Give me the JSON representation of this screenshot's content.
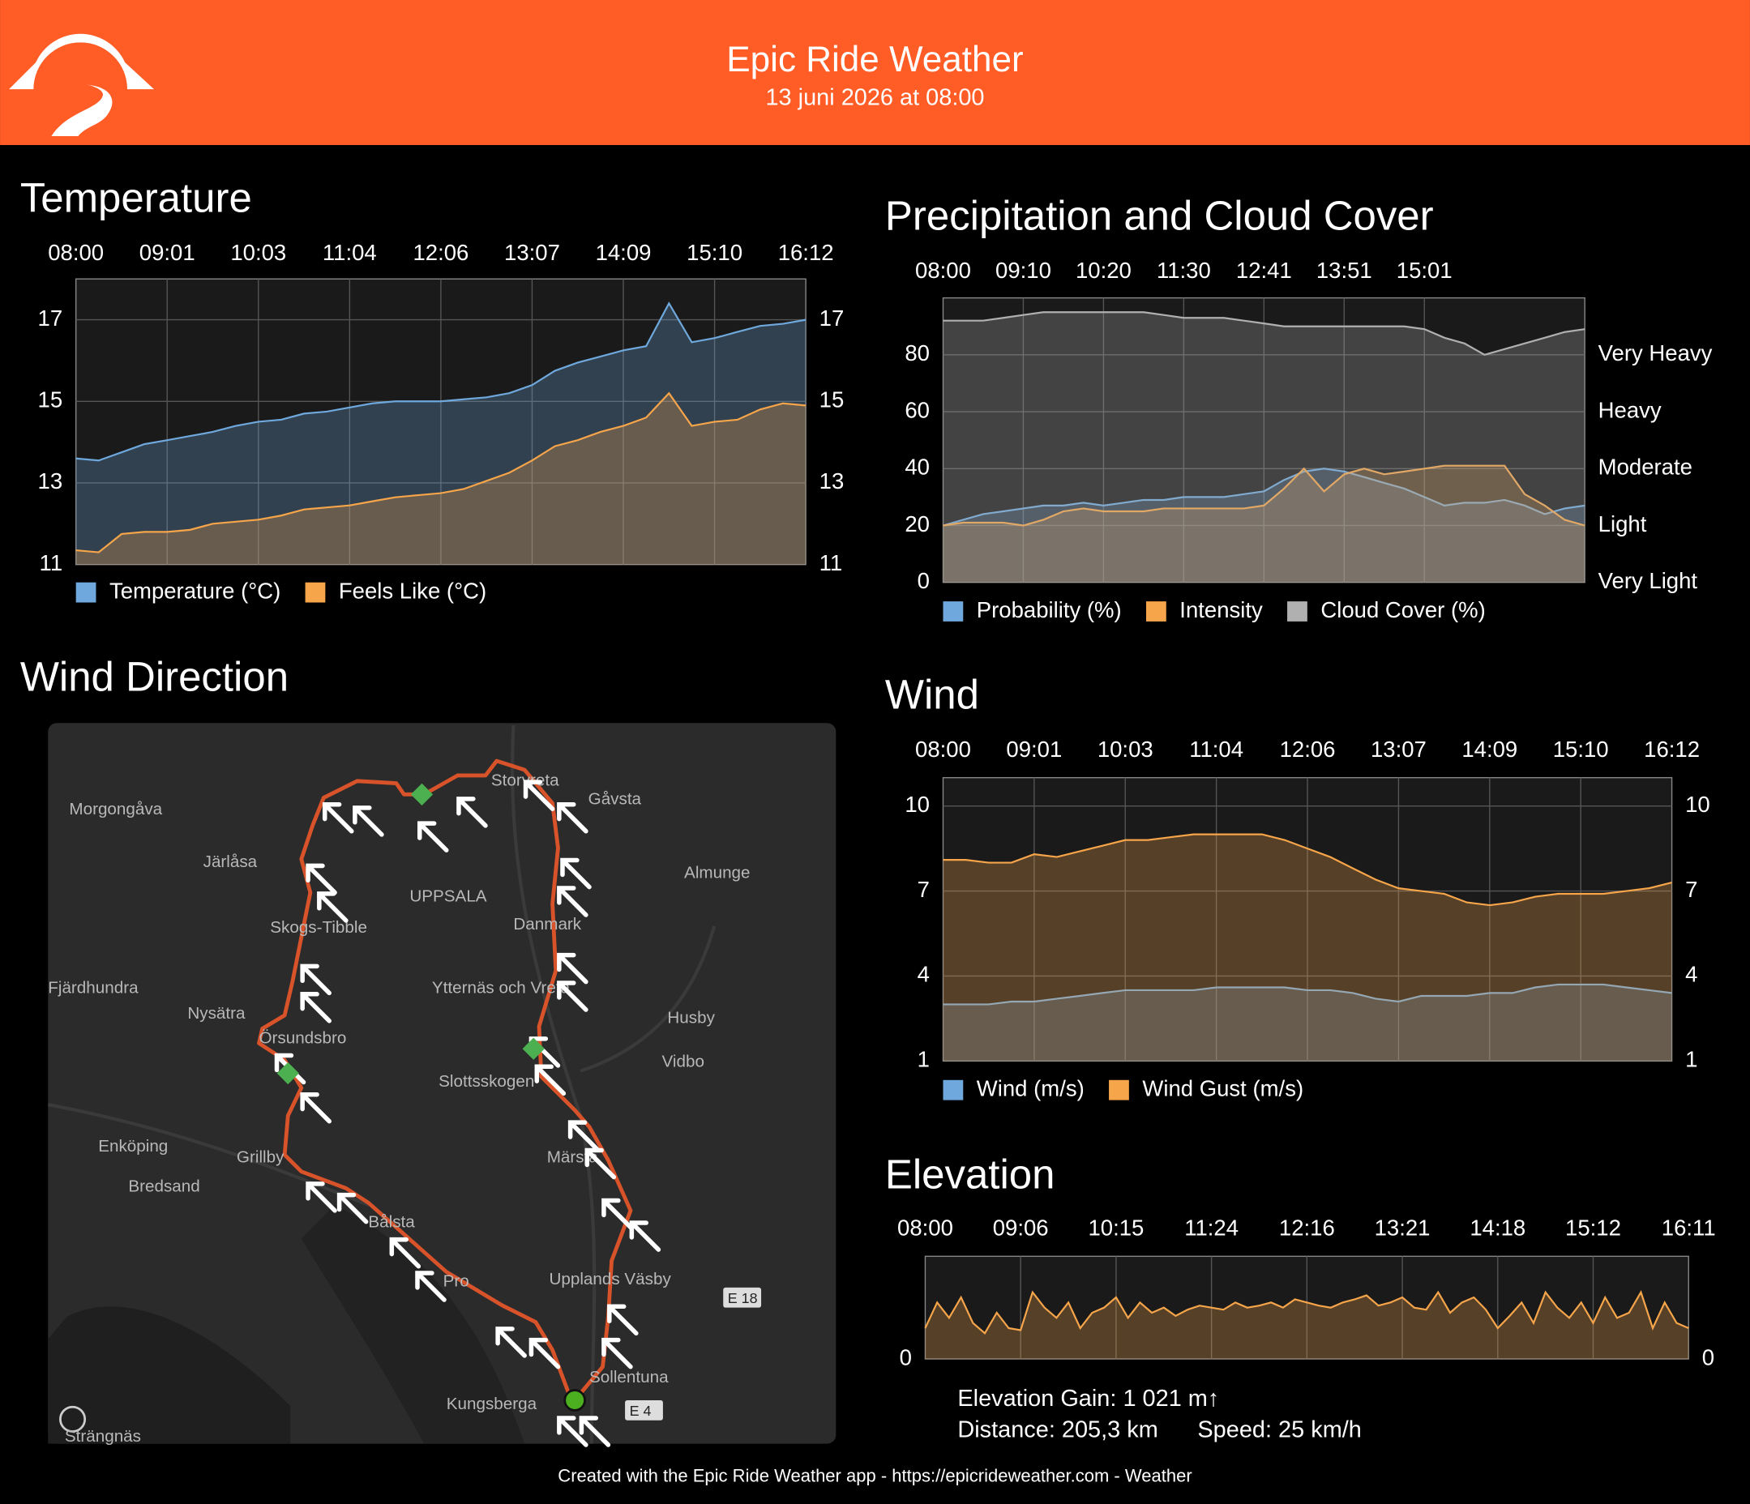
{
  "header": {
    "title": "Epic Ride Weather",
    "subtitle": "13 juni 2026 at 08:00"
  },
  "chart_data": [
    {
      "type": "area",
      "title": "Temperature",
      "categories": [
        "08:00",
        null,
        null,
        null,
        "09:01",
        null,
        null,
        null,
        "10:03",
        null,
        null,
        null,
        "11:04",
        null,
        null,
        null,
        "12:06",
        null,
        null,
        null,
        "13:07",
        null,
        null,
        null,
        "14:09",
        null,
        null,
        null,
        "15:10",
        null,
        null,
        null,
        "16:12"
      ],
      "series": [
        {
          "name": "Temperature (°C)",
          "color": "#6fa8dc",
          "values": [
            13.6,
            13.55,
            13.75,
            13.95,
            14.05,
            14.15,
            14.25,
            14.4,
            14.5,
            14.55,
            14.7,
            14.75,
            14.85,
            14.95,
            15.0,
            15.0,
            15.0,
            15.05,
            15.1,
            15.2,
            15.4,
            15.75,
            15.95,
            16.1,
            16.25,
            16.35,
            17.4,
            16.45,
            16.55,
            16.7,
            16.85,
            16.9,
            17.0
          ]
        },
        {
          "name": "Feels Like (°C)",
          "color": "#f6a54a",
          "values": [
            11.35,
            11.3,
            11.75,
            11.8,
            11.8,
            11.85,
            12.0,
            12.05,
            12.1,
            12.2,
            12.35,
            12.4,
            12.45,
            12.55,
            12.65,
            12.7,
            12.75,
            12.85,
            13.05,
            13.25,
            13.55,
            13.9,
            14.05,
            14.25,
            14.4,
            14.6,
            15.2,
            14.4,
            14.5,
            14.55,
            14.8,
            14.95,
            14.9
          ]
        }
      ],
      "ylim": [
        11,
        18
      ],
      "yticks": [
        11,
        13,
        15,
        17
      ],
      "mirror_yticks": true,
      "grid": true,
      "legend": "bottom"
    },
    {
      "type": "area",
      "title": "Precipitation and Cloud Cover",
      "categories": [
        "08:00",
        null,
        null,
        null,
        "09:10",
        null,
        null,
        null,
        "10:20",
        null,
        null,
        null,
        "11:30",
        null,
        null,
        null,
        "12:41",
        null,
        null,
        null,
        "13:51",
        null,
        null,
        null,
        "15:01",
        null,
        null,
        null,
        null,
        null,
        null,
        null,
        null
      ],
      "series": [
        {
          "name": "Probability (%)",
          "color": "#6fa8dc",
          "values": [
            20,
            22,
            24,
            25,
            26,
            27,
            27,
            28,
            27,
            28,
            29,
            29,
            30,
            30,
            30,
            31,
            32,
            36,
            39,
            40,
            39,
            37,
            35,
            33,
            30,
            27,
            28,
            28,
            29,
            27,
            24,
            26,
            27
          ]
        },
        {
          "name": "Intensity",
          "color": "#f6a54a",
          "axis": "y2",
          "values": [
            20,
            21,
            21,
            21,
            20,
            22,
            25,
            26,
            25,
            25,
            25,
            26,
            26,
            26,
            26,
            26,
            27,
            33,
            40,
            32,
            38,
            40,
            38,
            39,
            40,
            41,
            41,
            41,
            41,
            31,
            27,
            22,
            20
          ]
        },
        {
          "name": "Cloud Cover (%)",
          "color": "#b0b0b0",
          "values": [
            92,
            92,
            92,
            93,
            94,
            95,
            95,
            95,
            95,
            95,
            95,
            94,
            93,
            93,
            93,
            92,
            91,
            90,
            90,
            90,
            90,
            90,
            90,
            90,
            89,
            86,
            84,
            80,
            82,
            84,
            86,
            88,
            89
          ]
        }
      ],
      "ylim": [
        0,
        100
      ],
      "yticks": [
        0,
        20,
        40,
        60,
        80
      ],
      "y2lim": [
        0,
        100
      ],
      "y2ticks": [
        {
          "value": 0,
          "label": "Very Light"
        },
        {
          "value": 20,
          "label": "Light"
        },
        {
          "value": 40,
          "label": "Moderate"
        },
        {
          "value": 60,
          "label": "Heavy"
        },
        {
          "value": 80,
          "label": "Very Heavy"
        }
      ],
      "grid": true,
      "legend": "bottom"
    },
    {
      "type": "area",
      "title": "Wind",
      "categories": [
        "08:00",
        null,
        null,
        null,
        "09:01",
        null,
        null,
        null,
        "10:03",
        null,
        null,
        null,
        "11:04",
        null,
        null,
        null,
        "12:06",
        null,
        null,
        null,
        "13:07",
        null,
        null,
        null,
        "14:09",
        null,
        null,
        null,
        "15:10",
        null,
        null,
        null,
        "16:12"
      ],
      "series": [
        {
          "name": "Wind (m/s)",
          "color": "#6fa8dc",
          "values": [
            3.0,
            3.0,
            3.0,
            3.1,
            3.1,
            3.2,
            3.3,
            3.4,
            3.5,
            3.5,
            3.5,
            3.5,
            3.6,
            3.6,
            3.6,
            3.6,
            3.5,
            3.5,
            3.4,
            3.2,
            3.1,
            3.3,
            3.3,
            3.3,
            3.4,
            3.4,
            3.6,
            3.7,
            3.7,
            3.7,
            3.6,
            3.5,
            3.4
          ]
        },
        {
          "name": "Wind Gust (m/s)",
          "color": "#f6a54a",
          "values": [
            8.1,
            8.1,
            8.0,
            8.0,
            8.3,
            8.2,
            8.4,
            8.6,
            8.8,
            8.8,
            8.9,
            9.0,
            9.0,
            9.0,
            9.0,
            8.8,
            8.5,
            8.2,
            7.8,
            7.4,
            7.1,
            7.0,
            6.9,
            6.6,
            6.5,
            6.6,
            6.8,
            6.9,
            6.9,
            6.9,
            7.0,
            7.1,
            7.3
          ]
        }
      ],
      "ylim": [
        1,
        11
      ],
      "yticks": [
        1,
        4,
        7,
        10
      ],
      "mirror_yticks": true,
      "grid": true,
      "legend": "bottom"
    },
    {
      "type": "area",
      "title": "Elevation",
      "categories": [
        "08:00",
        null,
        null,
        null,
        null,
        null,
        null,
        null,
        "09:06",
        null,
        null,
        null,
        null,
        null,
        null,
        null,
        "10:15",
        null,
        null,
        null,
        null,
        null,
        null,
        null,
        "11:24",
        null,
        null,
        null,
        null,
        null,
        null,
        null,
        "12:16",
        null,
        null,
        null,
        null,
        null,
        null,
        null,
        "13:21",
        null,
        null,
        null,
        null,
        null,
        null,
        null,
        "14:18",
        null,
        null,
        null,
        null,
        null,
        null,
        null,
        "15:12",
        null,
        null,
        null,
        null,
        null,
        null,
        null,
        "16:11"
      ],
      "color": "#f6a54a",
      "values": [
        30,
        55,
        40,
        60,
        35,
        25,
        45,
        30,
        28,
        65,
        50,
        40,
        55,
        30,
        45,
        50,
        60,
        40,
        55,
        45,
        50,
        42,
        48,
        52,
        50,
        48,
        55,
        50,
        52,
        55,
        50,
        58,
        55,
        52,
        50,
        55,
        58,
        62,
        52,
        55,
        60,
        50,
        48,
        65,
        45,
        55,
        60,
        48,
        30,
        42,
        55,
        35,
        65,
        50,
        40,
        55,
        35,
        60,
        40,
        45,
        65,
        30,
        55,
        35,
        30
      ],
      "ylim": [
        0,
        100
      ],
      "yticks": [
        0
      ],
      "mirror_yticks": true,
      "grid": true
    }
  ],
  "elevation_info": {
    "gain": "Elevation Gain: 1 021 m↑",
    "distance": "Distance: 205,3 km",
    "speed": "Speed: 25 km/h"
  },
  "map": {
    "title": "Wind Direction",
    "labels": [
      "Morgongåva",
      "Järlåsa",
      "UPPSALA",
      "Skogs-Tibble",
      "Danmark",
      "Gåvsta",
      "Almunge",
      "Fjärdhundra",
      "Nysätra",
      "Ytternäs och Vreta",
      "Husby",
      "Örsundsbro",
      "Vidbo",
      "Slottsskogen",
      "Enköping",
      "Grillby",
      "Märsta",
      "Bredsand",
      "Bålsta",
      "Pro",
      "Upplands Väsby",
      "Sollentuna",
      "Kungsberga",
      "Strängnäs",
      "Storvreta",
      "E 18",
      "E 4"
    ]
  },
  "footer": "Created with the Epic Ride Weather app - https://epicrideweather.com -  Weather"
}
